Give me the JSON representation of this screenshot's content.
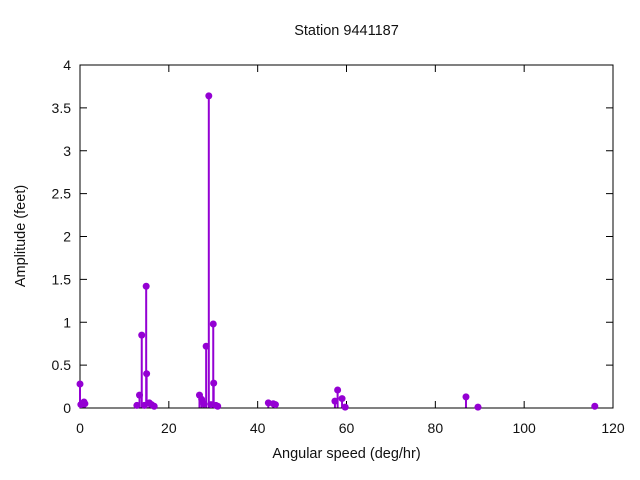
{
  "chart_data": {
    "type": "scatter",
    "style": "stem (impulses with point markers)",
    "title": "Station 9441187",
    "xlabel": "Angular speed (deg/hr)",
    "ylabel": "Amplitude (feet)",
    "xlim": [
      0,
      120
    ],
    "ylim": [
      0,
      4
    ],
    "x_ticks": [
      0,
      20,
      40,
      60,
      80,
      100,
      120
    ],
    "y_ticks": [
      0,
      0.5,
      1,
      1.5,
      2,
      2.5,
      3,
      3.5,
      4
    ],
    "grid": false,
    "legend": "none",
    "point_color": "#9400d3",
    "points": [
      [
        0.0,
        0.28
      ],
      [
        0.2,
        0.04
      ],
      [
        0.9,
        0.07
      ],
      [
        1.1,
        0.05
      ],
      [
        12.8,
        0.03
      ],
      [
        13.4,
        0.15
      ],
      [
        13.9,
        0.85
      ],
      [
        14.5,
        0.03
      ],
      [
        14.9,
        1.42
      ],
      [
        15.0,
        0.4
      ],
      [
        15.6,
        0.06
      ],
      [
        16.1,
        0.04
      ],
      [
        16.7,
        0.02
      ],
      [
        26.9,
        0.15
      ],
      [
        27.4,
        0.1
      ],
      [
        27.9,
        0.05
      ],
      [
        28.4,
        0.72
      ],
      [
        29.0,
        3.64
      ],
      [
        29.5,
        0.04
      ],
      [
        30.0,
        0.98
      ],
      [
        30.1,
        0.29
      ],
      [
        30.6,
        0.03
      ],
      [
        31.0,
        0.02
      ],
      [
        42.4,
        0.06
      ],
      [
        43.5,
        0.05
      ],
      [
        44.0,
        0.04
      ],
      [
        57.4,
        0.08
      ],
      [
        58.0,
        0.21
      ],
      [
        59.0,
        0.11
      ],
      [
        59.7,
        0.01
      ],
      [
        86.9,
        0.13
      ],
      [
        89.6,
        0.01
      ],
      [
        115.9,
        0.02
      ]
    ]
  }
}
